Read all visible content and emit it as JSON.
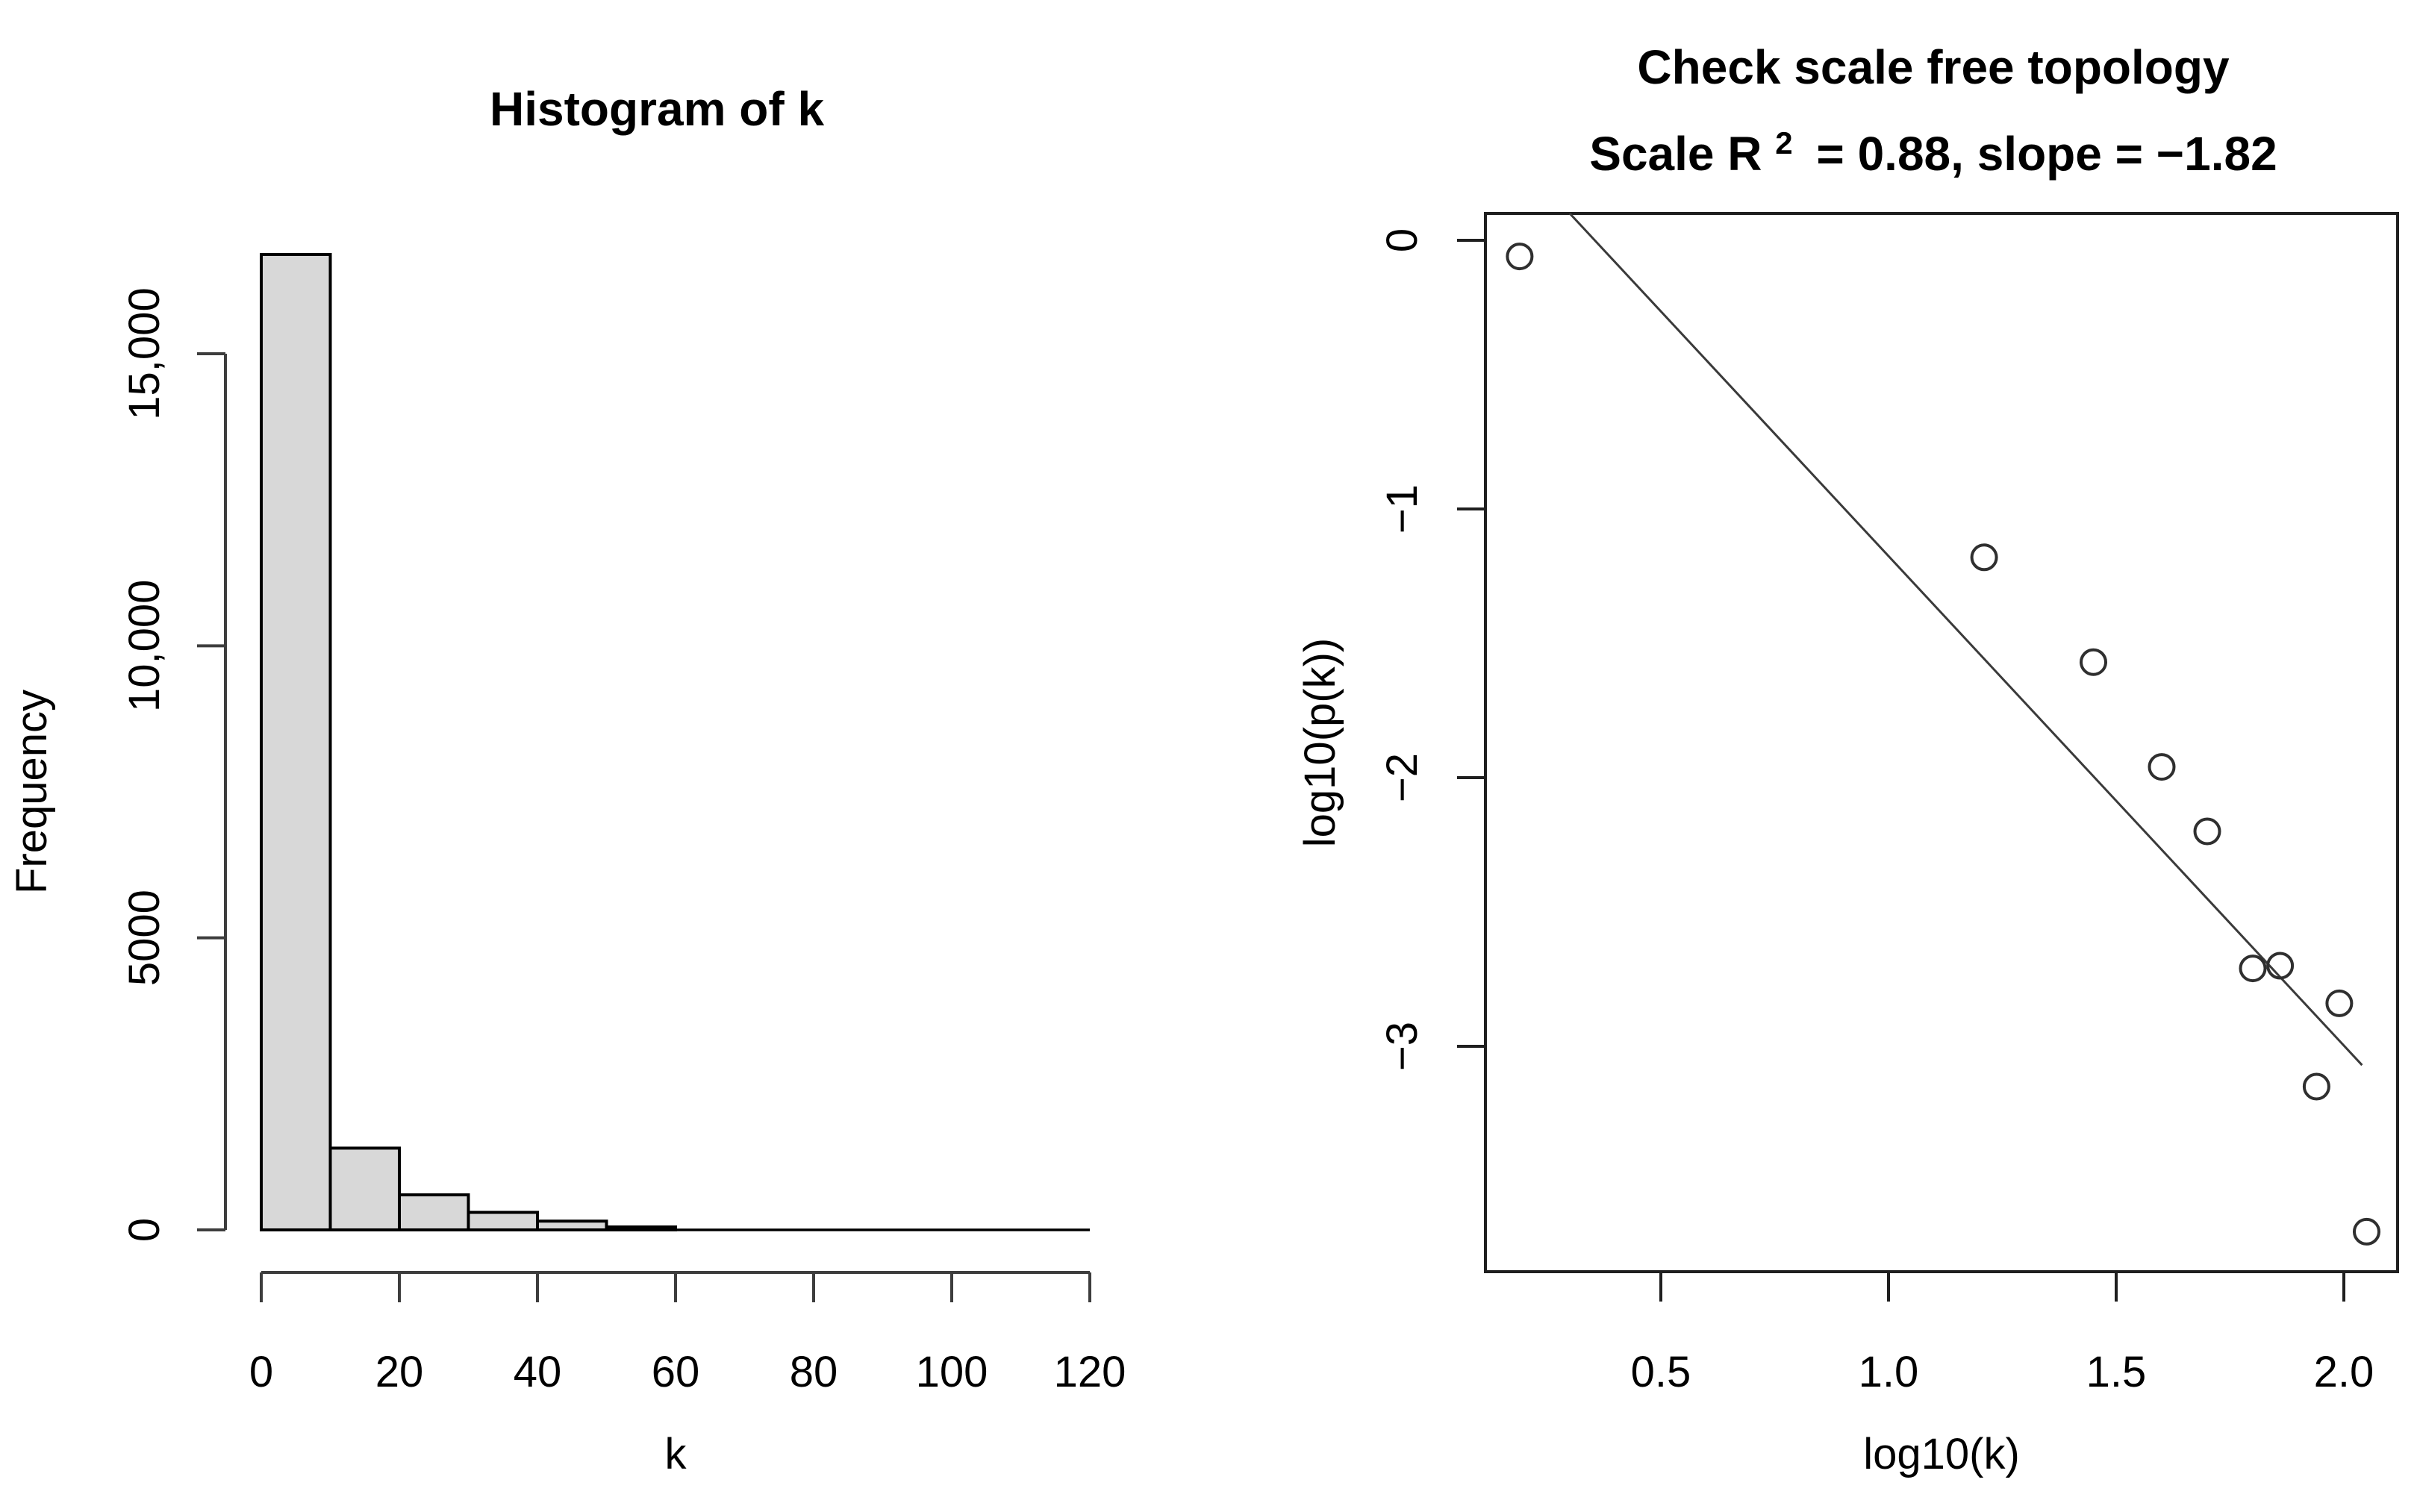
{
  "figure": {
    "background": "#ffffff",
    "text_color": "#000000"
  },
  "chart_data": [
    {
      "type": "bar",
      "id": "histogram-of-k",
      "title": "Histogram of k",
      "xlabel": "k",
      "ylabel": "Frequency",
      "bin_start": 0,
      "bin_width": 10,
      "bin_edges": [
        0,
        10,
        20,
        30,
        40,
        50,
        60,
        70,
        80,
        90,
        100,
        110,
        120
      ],
      "values": [
        16700,
        1400,
        600,
        300,
        150,
        50,
        10,
        4,
        2,
        1,
        1,
        1
      ],
      "xticks": [
        {
          "v": 0,
          "label": "0"
        },
        {
          "v": 20,
          "label": "20"
        },
        {
          "v": 40,
          "label": "40"
        },
        {
          "v": 60,
          "label": "60"
        },
        {
          "v": 80,
          "label": "80"
        },
        {
          "v": 100,
          "label": "100"
        },
        {
          "v": 120,
          "label": "120"
        }
      ],
      "yticks": [
        {
          "v": 0,
          "label": "0"
        },
        {
          "v": 5000,
          "label": "5000"
        },
        {
          "v": 10000,
          "label": "10,000"
        },
        {
          "v": 15000,
          "label": "15,000"
        }
      ],
      "xlim": [
        0,
        120
      ],
      "ylim": [
        0,
        16700
      ],
      "grid": false,
      "bar_fill": "#d8d8d8",
      "bar_stroke": "#000000",
      "axis_color": "#3d3d3d"
    },
    {
      "type": "scatter",
      "id": "scale-free-topology",
      "title": "Check scale free topology",
      "subtitle_parts": {
        "prefix": "Scale R",
        "sup": "2",
        "suffix": "= 0.88, slope = −1.82"
      },
      "r_squared": "0.88",
      "slope": "−1.82",
      "xlabel": "log10(k)",
      "ylabel": "log10(p(k))",
      "points": [
        [
          0.19,
          -0.06
        ],
        [
          1.21,
          -1.18
        ],
        [
          1.45,
          -1.57
        ],
        [
          1.6,
          -1.96
        ],
        [
          1.7,
          -2.2
        ],
        [
          1.8,
          -2.71
        ],
        [
          1.86,
          -2.7
        ],
        [
          1.94,
          -3.15
        ],
        [
          1.99,
          -2.84
        ],
        [
          2.05,
          -3.69
        ]
      ],
      "fit_line": {
        "x1": 0.3,
        "y1": 0.1,
        "x2": 2.04,
        "y2": -3.07
      },
      "xticks": [
        {
          "v": 0.5,
          "label": "0.5"
        },
        {
          "v": 1.0,
          "label": "1.0"
        },
        {
          "v": 1.5,
          "label": "1.5"
        },
        {
          "v": 2.0,
          "label": "2.0"
        }
      ],
      "yticks": [
        {
          "v": 0,
          "label": "0"
        },
        {
          "v": -1,
          "label": "−1"
        },
        {
          "v": -2,
          "label": "−2"
        },
        {
          "v": -3,
          "label": "−3"
        }
      ],
      "xlim": [
        0.115,
        2.118
      ],
      "ylim": [
        -3.84,
        0.1
      ],
      "grid": false,
      "legend": "none",
      "point_color": "#2f2f2f",
      "line_color": "#3a3a3a",
      "box_color": "#1f1f1f"
    }
  ]
}
